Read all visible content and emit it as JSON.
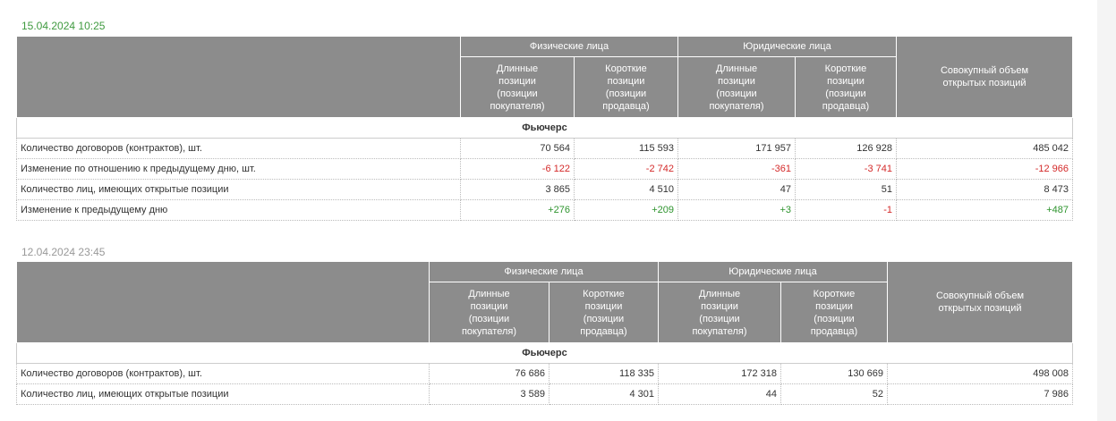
{
  "tables": [
    {
      "timestamp": "15.04.2024 10:25",
      "groups": [
        "Физические лица",
        "Юридические лица"
      ],
      "total": "Совокупный объем открытых позиций",
      "subheaders": [
        "Длинные позиции (позиции покупателя)",
        "Короткие позиции (позиции продавца)",
        "Длинные позиции (позиции покупателя)",
        "Короткие позиции (позиции продавца)"
      ],
      "section": "Фьючерс",
      "rows": [
        [
          "Количество договоров (контрактов), шт.",
          "70 564",
          "115 593",
          "171 957",
          "126 928",
          "485 042"
        ],
        [
          "Изменение по отношению к предыдущему дню, шт.",
          "-6 122",
          "-2 742",
          "-361",
          "-3 741",
          "-12 966"
        ],
        [
          "Количество лиц, имеющих открытые позиции",
          "3 865",
          "4 510",
          "47",
          "51",
          "8 473"
        ],
        [
          "Изменение к предыдущему дню",
          "+276",
          "+209",
          "+3",
          "-1",
          "+487"
        ]
      ]
    },
    {
      "timestamp": "12.04.2024 23:45",
      "groups": [
        "Физические лица",
        "Юридические лица"
      ],
      "total": "Совокупный объем открытых позиций",
      "subheaders": [
        "Длинные позиции (позиции покупателя)",
        "Короткие позиции (позиции продавца)",
        "Длинные позиции (позиции покупателя)",
        "Короткие позиции (позиции продавца)"
      ],
      "section": "Фьючерс",
      "rows": [
        [
          "Количество договоров (контрактов), шт.",
          "76 686",
          "118 335",
          "172 318",
          "130 669",
          "498 008"
        ],
        [
          "Количество лиц, имеющих открытые позиции",
          "3 589",
          "4 301",
          "44",
          "52",
          "7 986"
        ]
      ]
    }
  ]
}
